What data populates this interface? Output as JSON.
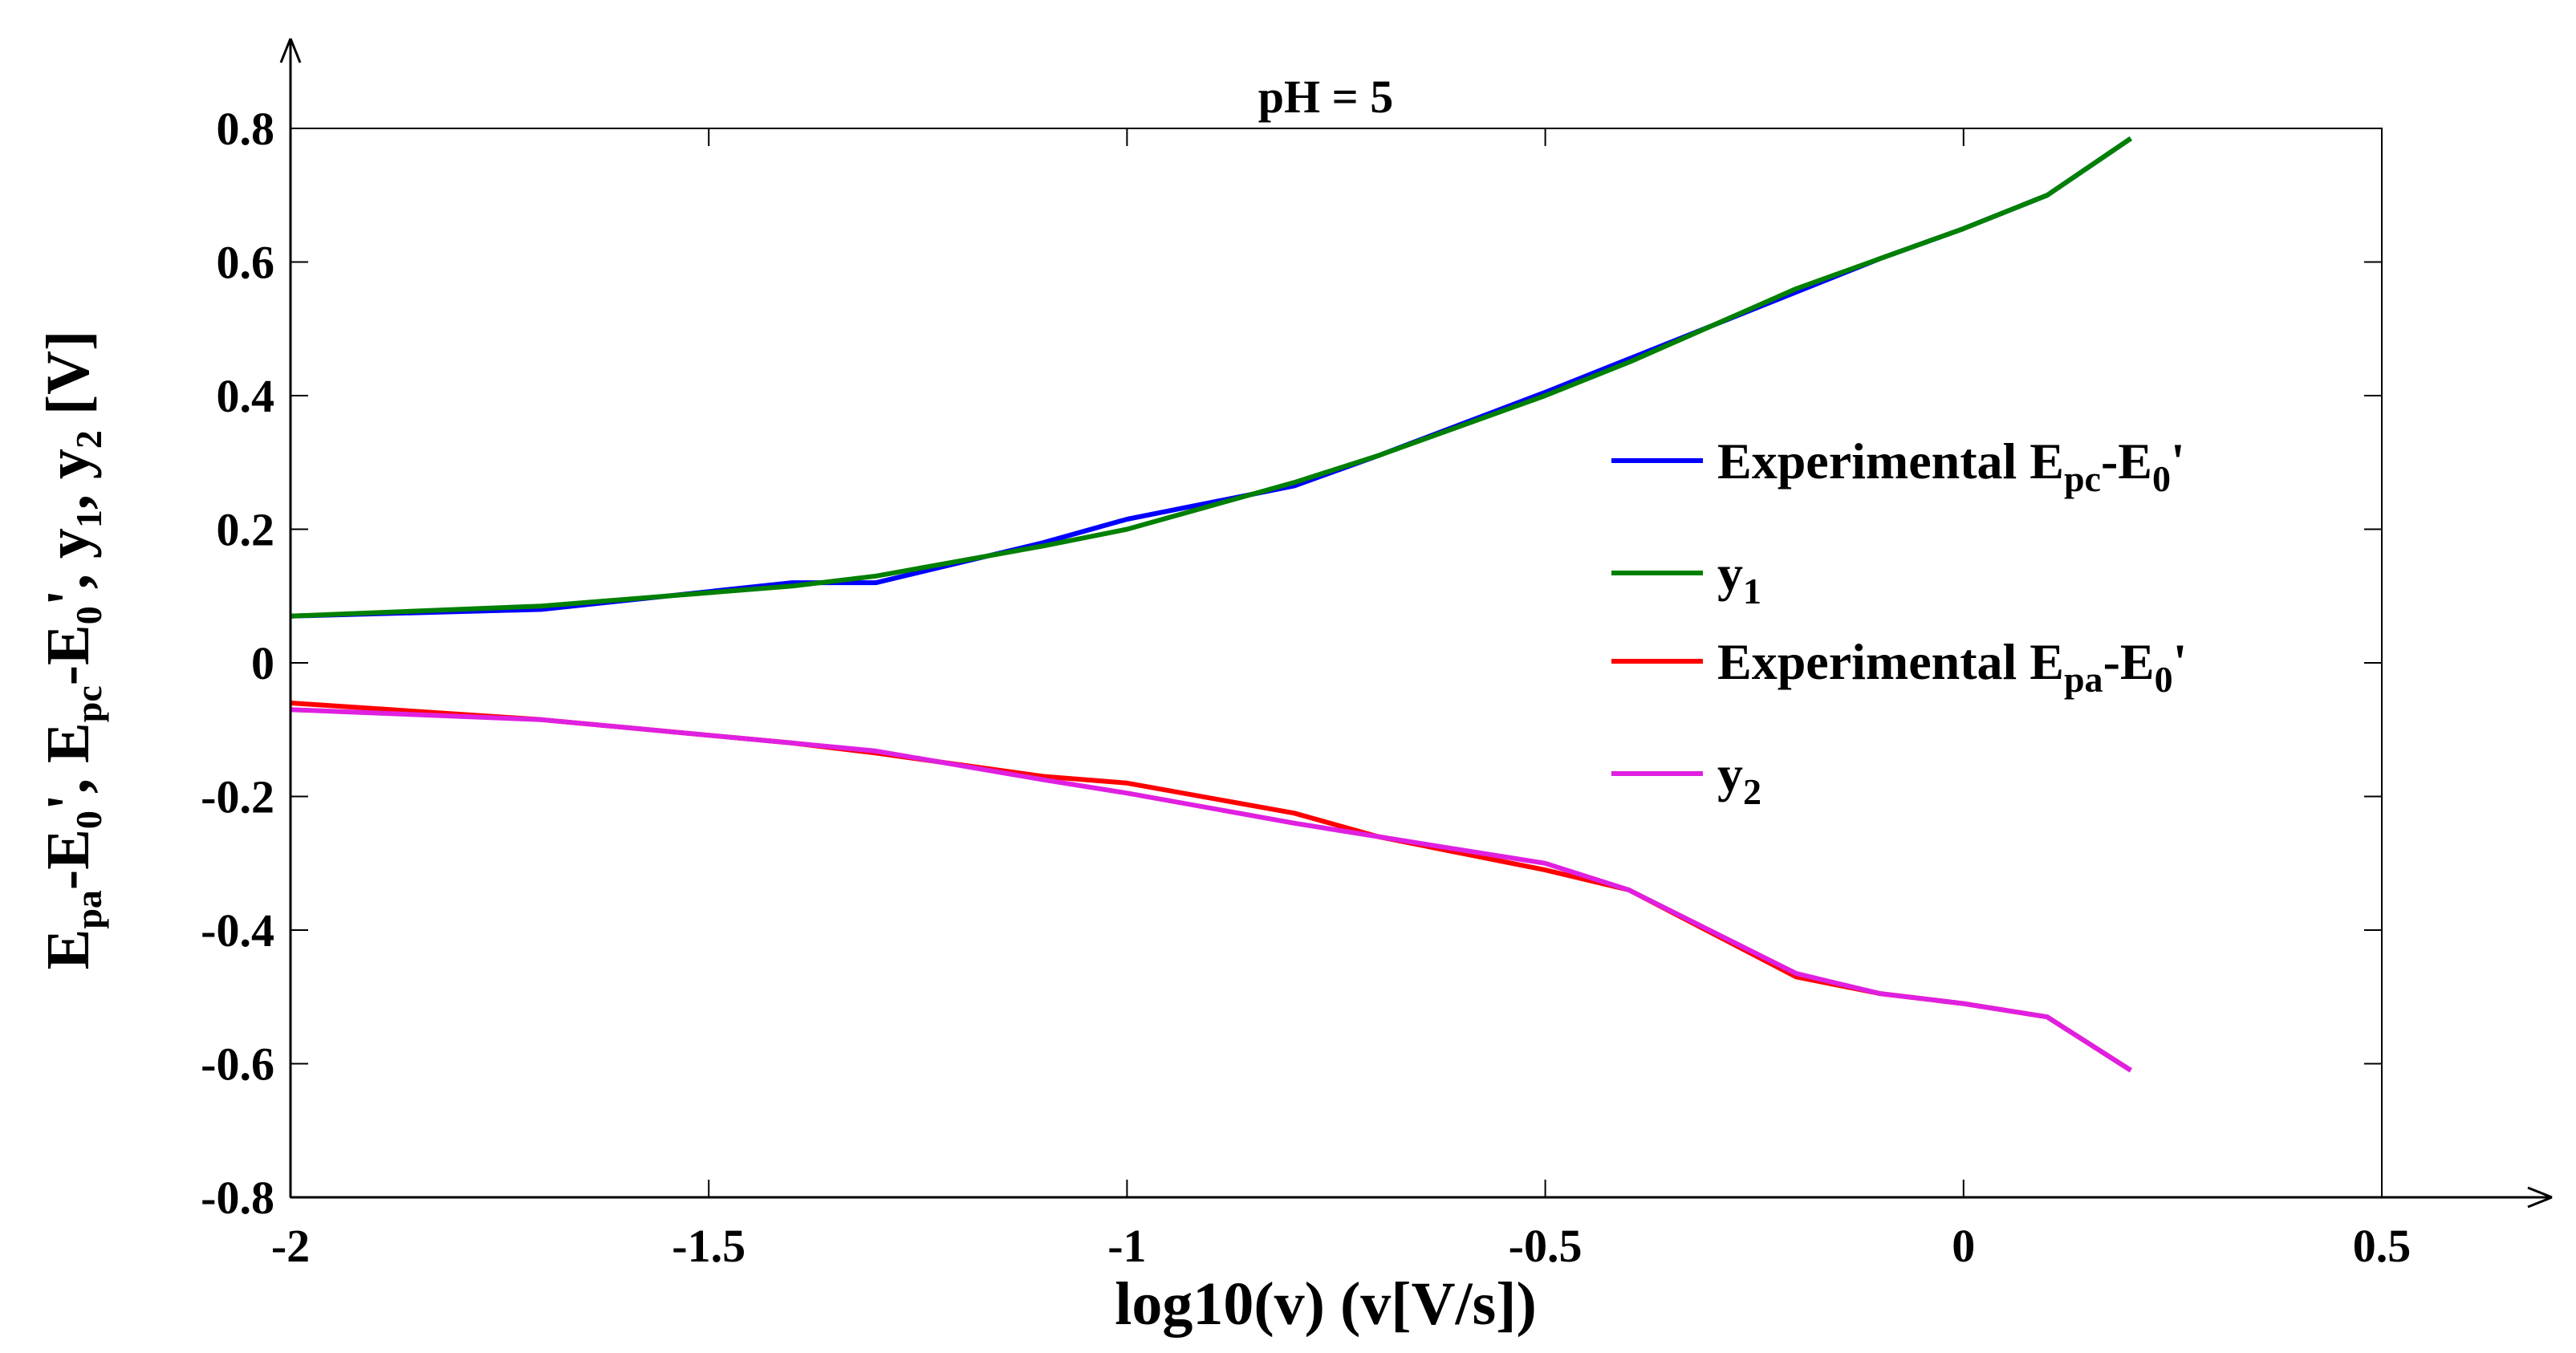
{
  "chart_data": {
    "type": "line",
    "title": "pH = 5",
    "xlabel": "log10(v) (v[V/s])",
    "ylabel": {
      "parts": [
        {
          "text": "E",
          "sub": false
        },
        {
          "text": "pa",
          "sub": true
        },
        {
          "text": "-E",
          "sub": false
        },
        {
          "text": "0",
          "sub": true
        },
        {
          "text": "', E",
          "sub": false
        },
        {
          "text": "pc",
          "sub": true
        },
        {
          "text": "-E",
          "sub": false
        },
        {
          "text": "0",
          "sub": true
        },
        {
          "text": "', y",
          "sub": false
        },
        {
          "text": "1",
          "sub": true
        },
        {
          "text": ", y",
          "sub": false
        },
        {
          "text": "2",
          "sub": true
        },
        {
          "text": " [V]",
          "sub": false
        }
      ]
    },
    "xlim": [
      -2,
      0.5
    ],
    "ylim": [
      -0.8,
      0.8
    ],
    "xticks": [
      -2,
      -1.5,
      -1,
      -0.5,
      0,
      0.5
    ],
    "xtick_labels": [
      "-2",
      "-1.5",
      "-1",
      "-0.5",
      "0",
      "0.5"
    ],
    "yticks": [
      -0.8,
      -0.6,
      -0.4,
      -0.2,
      0,
      0.2,
      0.4,
      0.6,
      0.8
    ],
    "ytick_labels": [
      "-0.8",
      "-0.6",
      "-0.4",
      "-0.2",
      "0",
      "0.2",
      "0.4",
      "0.6",
      "0.8"
    ],
    "grid": false,
    "legend_position": "right",
    "series": [
      {
        "name": "Experimental Epc-E0'",
        "legend_parts": [
          {
            "text": "Experimental E",
            "sub": false
          },
          {
            "text": "pc",
            "sub": true
          },
          {
            "text": "-E",
            "sub": false
          },
          {
            "text": "0",
            "sub": true
          },
          {
            "text": "'",
            "sub": false
          }
        ],
        "color": "#0000ff",
        "x": [
          -2.0,
          -1.7,
          -1.4,
          -1.3,
          -1.1,
          -1.0,
          -0.8,
          -0.7,
          -0.5,
          -0.4,
          -0.2,
          -0.1,
          0.0,
          0.1,
          0.2
        ],
        "y": [
          0.07,
          0.08,
          0.12,
          0.12,
          0.18,
          0.215,
          0.265,
          0.31,
          0.405,
          0.455,
          0.555,
          0.605,
          0.65,
          0.7,
          0.785
        ]
      },
      {
        "name": "y1",
        "legend_parts": [
          {
            "text": "y",
            "sub": false
          },
          {
            "text": "1",
            "sub": true
          }
        ],
        "color": "#008000",
        "x": [
          -2.0,
          -1.7,
          -1.4,
          -1.3,
          -1.1,
          -1.0,
          -0.8,
          -0.7,
          -0.5,
          -0.4,
          -0.2,
          -0.1,
          0.0,
          0.1,
          0.2
        ],
        "y": [
          0.07,
          0.085,
          0.115,
          0.13,
          0.175,
          0.2,
          0.27,
          0.31,
          0.4,
          0.45,
          0.56,
          0.605,
          0.65,
          0.7,
          0.785
        ]
      },
      {
        "name": "Experimental Epa-E0'",
        "legend_parts": [
          {
            "text": "Experimental E",
            "sub": false
          },
          {
            "text": "pa",
            "sub": true
          },
          {
            "text": "-E",
            "sub": false
          },
          {
            "text": "0",
            "sub": true
          },
          {
            "text": "'",
            "sub": false
          }
        ],
        "color": "#ff0000",
        "x": [
          -2.0,
          -1.7,
          -1.4,
          -1.3,
          -1.1,
          -1.0,
          -0.8,
          -0.7,
          -0.5,
          -0.4,
          -0.2,
          -0.1,
          0.0,
          0.1,
          0.2
        ],
        "y": [
          -0.06,
          -0.085,
          -0.12,
          -0.135,
          -0.17,
          -0.18,
          -0.225,
          -0.26,
          -0.31,
          -0.34,
          -0.47,
          -0.495,
          -0.51,
          -0.53,
          -0.61
        ]
      },
      {
        "name": "y2",
        "legend_parts": [
          {
            "text": "y",
            "sub": false
          },
          {
            "text": "2",
            "sub": true
          }
        ],
        "color": "#e020e0",
        "x": [
          -2.0,
          -1.7,
          -1.4,
          -1.3,
          -1.1,
          -1.0,
          -0.8,
          -0.7,
          -0.5,
          -0.4,
          -0.2,
          -0.1,
          0.0,
          0.1,
          0.2
        ],
        "y": [
          -0.07,
          -0.085,
          -0.12,
          -0.132,
          -0.175,
          -0.195,
          -0.24,
          -0.26,
          -0.3,
          -0.34,
          -0.465,
          -0.495,
          -0.51,
          -0.53,
          -0.61
        ]
      }
    ]
  }
}
